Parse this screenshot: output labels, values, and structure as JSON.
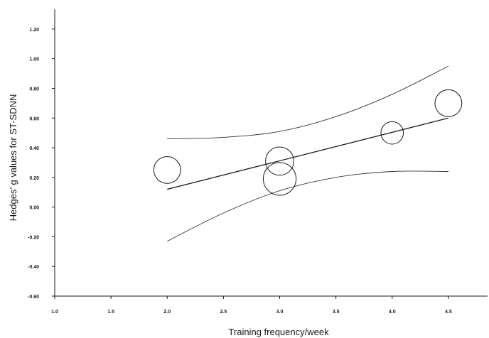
{
  "chart_data": {
    "type": "scatter",
    "title": "",
    "xlabel": "Training frequency/week",
    "ylabel": "Hedges’ g values for ST-SDNN",
    "xlim": [
      1.0,
      5.0
    ],
    "ylim": [
      -0.6,
      1.3
    ],
    "grid": false,
    "legend": "none",
    "x_ticks": [
      "1.0",
      "1.5",
      "2.0",
      "2.5",
      "3.0",
      "3.5",
      "4.0",
      "4.5"
    ],
    "y_ticks": [
      "-0.60",
      "-0.40",
      "-0.20",
      "0.00",
      "0.20",
      "0.40",
      "0.60",
      "0.80",
      "1.00",
      "1.20"
    ],
    "points": [
      {
        "x": 2.0,
        "y": 0.25,
        "weight": 0.9
      },
      {
        "x": 3.0,
        "y": 0.31,
        "weight": 0.95
      },
      {
        "x": 3.0,
        "y": 0.19,
        "weight": 1.1
      },
      {
        "x": 4.0,
        "y": 0.5,
        "weight": 0.75
      },
      {
        "x": 4.5,
        "y": 0.7,
        "weight": 0.9
      }
    ],
    "regression_line": {
      "x": [
        2.0,
        4.5
      ],
      "y": [
        0.12,
        0.6
      ]
    },
    "confidence_upper": {
      "x": [
        2.0,
        2.5,
        3.0,
        3.5,
        4.0,
        4.5
      ],
      "y": [
        0.46,
        0.47,
        0.51,
        0.61,
        0.76,
        0.95
      ]
    },
    "confidence_lower": {
      "x": [
        2.0,
        2.5,
        3.0,
        3.5,
        4.0,
        4.5
      ],
      "y": [
        -0.23,
        -0.04,
        0.11,
        0.2,
        0.24,
        0.24
      ]
    },
    "colors": {
      "axis": "#1a1a1a",
      "marker": "#1a1a1a",
      "regression": "#1a1a1a",
      "confidence": "#333333"
    }
  }
}
